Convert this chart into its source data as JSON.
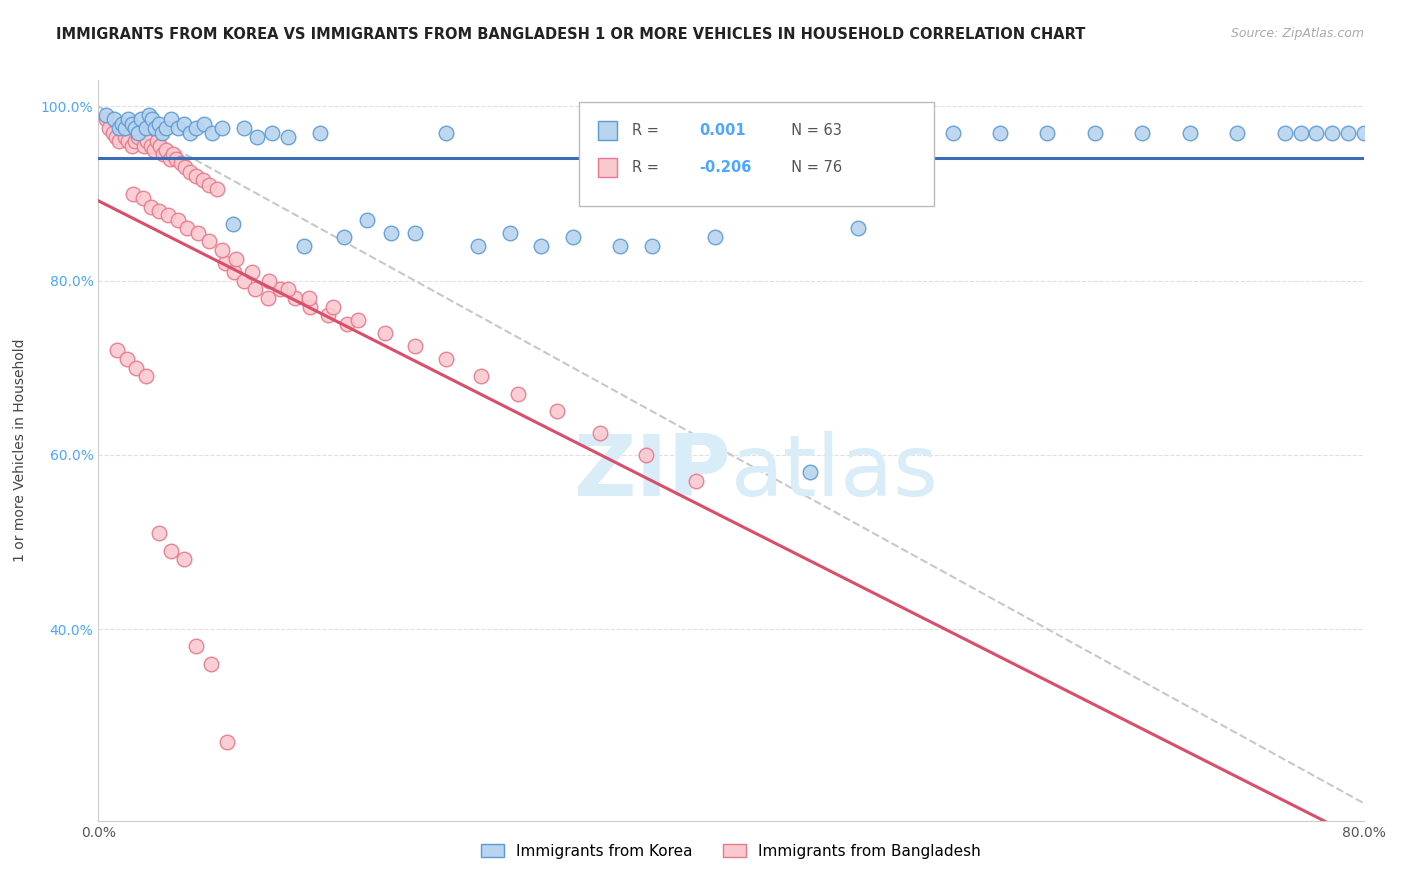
{
  "title": "IMMIGRANTS FROM KOREA VS IMMIGRANTS FROM BANGLADESH 1 OR MORE VEHICLES IN HOUSEHOLD CORRELATION CHART",
  "source": "Source: ZipAtlas.com",
  "ylabel": "1 or more Vehicles in Household",
  "xlim": [
    0.0,
    0.8
  ],
  "ylim": [
    0.18,
    1.03
  ],
  "xticks": [
    0.0,
    0.1,
    0.2,
    0.3,
    0.4,
    0.5,
    0.6,
    0.7,
    0.8
  ],
  "yticks": [
    0.4,
    0.6,
    0.8,
    1.0
  ],
  "yticklabels": [
    "40.0%",
    "60.0%",
    "80.0%",
    "100.0%"
  ],
  "korea_R": 0.001,
  "korea_N": 63,
  "bangladesh_R": -0.206,
  "bangladesh_N": 76,
  "korea_color": "#b8d4ee",
  "korea_edge_color": "#5b9bd5",
  "bangladesh_color": "#f9c9d0",
  "bangladesh_edge_color": "#e8788a",
  "korea_trend_color": "#3a6db5",
  "bangladesh_trend_color": "#d94f6b",
  "diag_line_color": "#c8c8c8",
  "background_color": "#ffffff",
  "grid_color": "#e0e0e0",
  "korea_x": [
    0.005,
    0.01,
    0.013,
    0.015,
    0.017,
    0.019,
    0.021,
    0.023,
    0.025,
    0.027,
    0.03,
    0.032,
    0.034,
    0.036,
    0.038,
    0.04,
    0.043,
    0.046,
    0.05,
    0.054,
    0.058,
    0.062,
    0.067,
    0.072,
    0.078,
    0.085,
    0.092,
    0.1,
    0.11,
    0.12,
    0.13,
    0.14,
    0.155,
    0.17,
    0.185,
    0.2,
    0.22,
    0.24,
    0.26,
    0.28,
    0.3,
    0.33,
    0.36,
    0.39,
    0.42,
    0.45,
    0.48,
    0.51,
    0.54,
    0.57,
    0.6,
    0.63,
    0.66,
    0.69,
    0.72,
    0.75,
    0.76,
    0.77,
    0.78,
    0.79,
    0.8,
    0.35,
    0.43
  ],
  "korea_y": [
    0.99,
    0.985,
    0.975,
    0.98,
    0.975,
    0.985,
    0.98,
    0.975,
    0.97,
    0.985,
    0.975,
    0.99,
    0.985,
    0.975,
    0.98,
    0.97,
    0.975,
    0.985,
    0.975,
    0.98,
    0.97,
    0.975,
    0.98,
    0.97,
    0.975,
    0.865,
    0.975,
    0.965,
    0.97,
    0.965,
    0.84,
    0.97,
    0.85,
    0.87,
    0.855,
    0.855,
    0.97,
    0.84,
    0.855,
    0.84,
    0.85,
    0.84,
    0.97,
    0.85,
    0.97,
    0.58,
    0.86,
    0.97,
    0.97,
    0.97,
    0.97,
    0.97,
    0.97,
    0.97,
    0.97,
    0.97,
    0.97,
    0.97,
    0.97,
    0.97,
    0.97,
    0.84,
    0.97
  ],
  "bangladesh_x": [
    0.005,
    0.007,
    0.009,
    0.011,
    0.013,
    0.015,
    0.017,
    0.019,
    0.021,
    0.023,
    0.025,
    0.027,
    0.029,
    0.031,
    0.033,
    0.035,
    0.037,
    0.039,
    0.041,
    0.043,
    0.045,
    0.047,
    0.049,
    0.052,
    0.055,
    0.058,
    0.062,
    0.066,
    0.07,
    0.075,
    0.08,
    0.086,
    0.092,
    0.099,
    0.107,
    0.115,
    0.124,
    0.134,
    0.145,
    0.157,
    0.022,
    0.028,
    0.033,
    0.038,
    0.044,
    0.05,
    0.056,
    0.063,
    0.07,
    0.078,
    0.087,
    0.097,
    0.108,
    0.12,
    0.133,
    0.148,
    0.164,
    0.181,
    0.2,
    0.22,
    0.242,
    0.265,
    0.29,
    0.317,
    0.346,
    0.378,
    0.012,
    0.018,
    0.024,
    0.03,
    0.038,
    0.046,
    0.054,
    0.062,
    0.071,
    0.081
  ],
  "bangladesh_y": [
    0.985,
    0.975,
    0.97,
    0.965,
    0.96,
    0.975,
    0.965,
    0.96,
    0.955,
    0.96,
    0.965,
    0.97,
    0.955,
    0.96,
    0.955,
    0.95,
    0.96,
    0.955,
    0.945,
    0.95,
    0.94,
    0.945,
    0.94,
    0.935,
    0.93,
    0.925,
    0.92,
    0.915,
    0.91,
    0.905,
    0.82,
    0.81,
    0.8,
    0.79,
    0.78,
    0.79,
    0.78,
    0.77,
    0.76,
    0.75,
    0.9,
    0.895,
    0.885,
    0.88,
    0.875,
    0.87,
    0.86,
    0.855,
    0.845,
    0.835,
    0.825,
    0.81,
    0.8,
    0.79,
    0.78,
    0.77,
    0.755,
    0.74,
    0.725,
    0.71,
    0.69,
    0.67,
    0.65,
    0.625,
    0.6,
    0.57,
    0.72,
    0.71,
    0.7,
    0.69,
    0.51,
    0.49,
    0.48,
    0.38,
    0.36,
    0.27
  ]
}
